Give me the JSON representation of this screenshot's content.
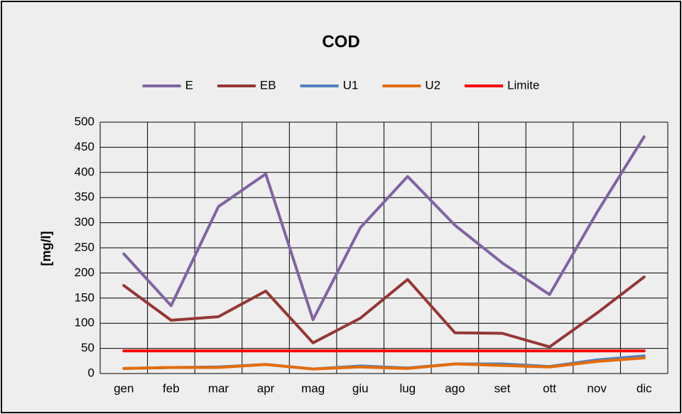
{
  "chart_data": {
    "type": "line",
    "title": "COD",
    "y_label": "[mg/l]",
    "categories": [
      "gen",
      "feb",
      "mar",
      "apr",
      "mag",
      "giu",
      "lug",
      "ago",
      "set",
      "ott",
      "nov",
      "dic"
    ],
    "series": [
      {
        "name": "E",
        "color": "#8064a2",
        "values": [
          238,
          135,
          332,
          397,
          107,
          290,
          392,
          295,
          220,
          157,
          320,
          471
        ]
      },
      {
        "name": "EB",
        "color": "#953735",
        "values": [
          175,
          106,
          113,
          164,
          61,
          110,
          187,
          81,
          80,
          53,
          120,
          192
        ]
      },
      {
        "name": "U1",
        "color": "#4f81bd",
        "values": [
          10,
          12,
          13,
          18,
          9,
          15,
          11,
          19,
          19,
          14,
          27,
          35
        ]
      },
      {
        "name": "U2",
        "color": "#e46c0a",
        "values": [
          10,
          12,
          12,
          18,
          9,
          13,
          10,
          19,
          16,
          13,
          24,
          31
        ]
      },
      {
        "name": "Limite",
        "color": "#ff0000",
        "values": [
          45,
          45,
          45,
          45,
          45,
          45,
          45,
          45,
          45,
          45,
          45,
          45
        ]
      }
    ],
    "ylim": [
      0,
      500
    ],
    "yticks": [
      0,
      50,
      100,
      150,
      200,
      250,
      300,
      350,
      400,
      450,
      500
    ],
    "grid": true,
    "legend": "top"
  }
}
